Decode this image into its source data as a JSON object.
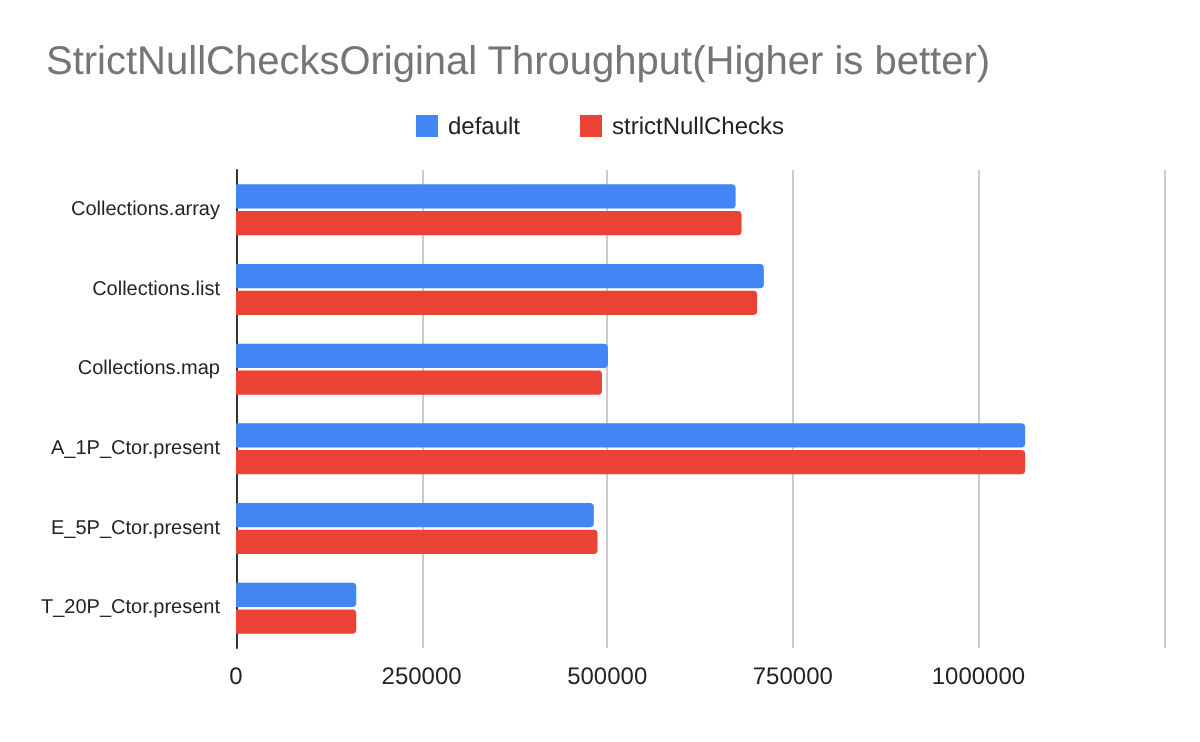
{
  "chart_data": {
    "type": "bar",
    "orientation": "horizontal",
    "title": "StrictNullChecksOriginal Throughput(Higher is better)",
    "categories": [
      "Collections.array",
      "Collections.list",
      "Collections.map",
      "A_1P_Ctor.present",
      "E_5P_Ctor.present",
      "T_20P_Ctor.present"
    ],
    "series": [
      {
        "name": "default",
        "color": "#4285f4",
        "values": [
          673000,
          711000,
          501000,
          1063000,
          482000,
          162000
        ]
      },
      {
        "name": "strictNullChecks",
        "color": "#ea4335",
        "values": [
          681000,
          702000,
          493000,
          1063000,
          487000,
          162000
        ]
      }
    ],
    "xlim": [
      0,
      1250000
    ],
    "xticks": [
      0,
      250000,
      500000,
      750000,
      1000000,
      {
        "value": 1250000,
        "label": null
      }
    ],
    "grid": "x",
    "legend": "top"
  }
}
